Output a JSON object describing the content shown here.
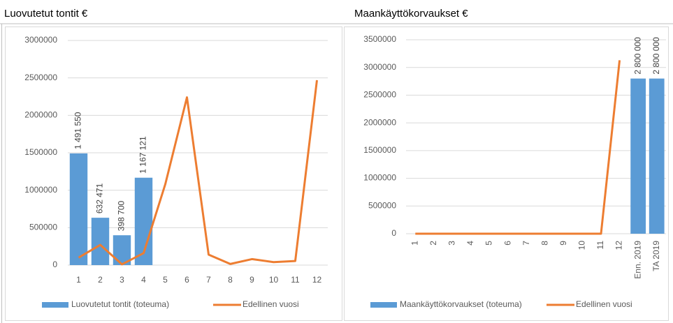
{
  "chart_data": [
    {
      "type": "bar",
      "title": "Luovutetut tontit €",
      "categories": [
        "1",
        "2",
        "3",
        "4",
        "5",
        "6",
        "7",
        "8",
        "9",
        "10",
        "11",
        "12"
      ],
      "series": [
        {
          "name": "Luovutetut tontit (toteuma)",
          "type": "bar",
          "color": "#5b9bd5",
          "values": [
            1491550,
            632471,
            398700,
            1167121,
            null,
            null,
            null,
            null,
            null,
            null,
            null,
            null
          ],
          "value_labels": [
            "1 491 550",
            "632 471",
            "398 700",
            "1 167 121",
            null,
            null,
            null,
            null,
            null,
            null,
            null,
            null
          ]
        },
        {
          "name": "Edellinen vuosi",
          "type": "line",
          "color": "#ed7d31",
          "values": [
            100000,
            270000,
            10000,
            160000,
            1080000,
            2240000,
            140000,
            15000,
            80000,
            40000,
            55000,
            2470000
          ]
        }
      ],
      "ylim": [
        0,
        3000000
      ],
      "yticks": [
        0,
        500000,
        1000000,
        1500000,
        2000000,
        2500000,
        3000000
      ],
      "grid": true,
      "legend": "bottom"
    },
    {
      "type": "bar",
      "title": "Maankäyttökorvaukset €",
      "categories": [
        "1",
        "2",
        "3",
        "4",
        "5",
        "6",
        "7",
        "8",
        "9",
        "10",
        "11",
        "12",
        "Enn. 2019",
        "TA 2019"
      ],
      "series": [
        {
          "name": "Maankäyttökorvaukset (toteuma)",
          "type": "bar",
          "color": "#5b9bd5",
          "values": [
            null,
            null,
            null,
            null,
            null,
            null,
            null,
            null,
            null,
            null,
            null,
            null,
            2800000,
            2800000
          ],
          "value_labels": [
            null,
            null,
            null,
            null,
            null,
            null,
            null,
            null,
            null,
            null,
            null,
            null,
            "2 800 000",
            "2 800 000"
          ]
        },
        {
          "name": "Edellinen vuosi",
          "type": "line",
          "color": "#ed7d31",
          "values": [
            0,
            0,
            0,
            0,
            0,
            0,
            0,
            0,
            0,
            0,
            0,
            3130000,
            null,
            null
          ]
        }
      ],
      "ylim": [
        0,
        3500000
      ],
      "yticks": [
        0,
        500000,
        1000000,
        1500000,
        2000000,
        2500000,
        3000000,
        3500000
      ],
      "grid": true,
      "legend": "bottom",
      "rotate_x_labels": true
    }
  ]
}
